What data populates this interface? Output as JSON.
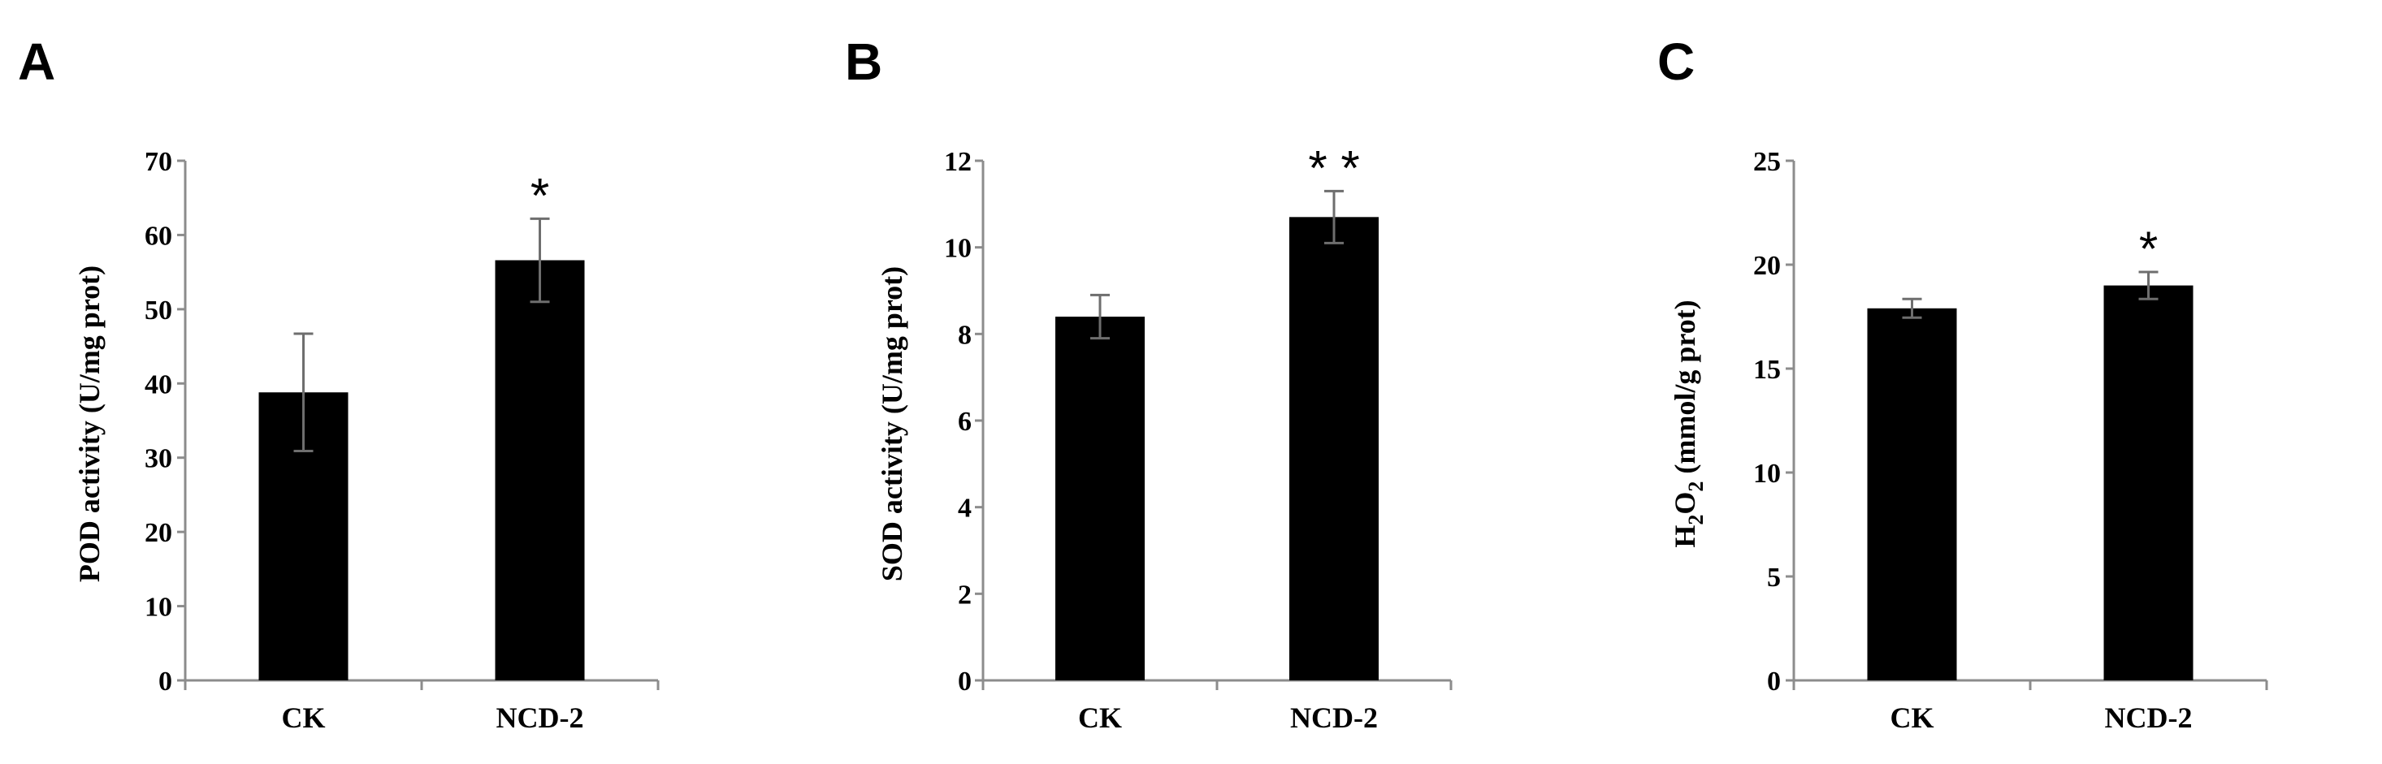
{
  "chart_data": [
    {
      "type": "bar",
      "panel_label": "A",
      "ylabel": "POD activity (U/mg prot)",
      "ylim": [
        0,
        70
      ],
      "yticks": [
        0,
        10,
        20,
        30,
        40,
        50,
        60,
        70
      ],
      "categories": [
        "CK",
        "NCD-2"
      ],
      "values": [
        38.8,
        56.6
      ],
      "errors": [
        7.9,
        5.6
      ],
      "significance": [
        "",
        "*"
      ],
      "bar_color": "#000000"
    },
    {
      "type": "bar",
      "panel_label": "B",
      "ylabel": "SOD activity (U/mg prot)",
      "ylim": [
        0,
        12
      ],
      "yticks": [
        0,
        2,
        4,
        6,
        8,
        10,
        12
      ],
      "categories": [
        "CK",
        "NCD-2"
      ],
      "values": [
        8.4,
        10.7
      ],
      "errors": [
        0.5,
        0.6
      ],
      "significance": [
        "",
        "* *"
      ],
      "bar_color": "#000000"
    },
    {
      "type": "bar",
      "panel_label": "C",
      "ylabel_parts": {
        "main": "H",
        "sub1": "2",
        "mid": "O",
        "sub2": "2",
        "rest": " (mmol/g prot)"
      },
      "ylim": [
        0,
        25
      ],
      "yticks": [
        0,
        5,
        10,
        15,
        20,
        25
      ],
      "categories": [
        "CK",
        "NCD-2"
      ],
      "values": [
        17.9,
        19.0
      ],
      "errors": [
        0.45,
        0.65
      ],
      "significance": [
        "",
        "*"
      ],
      "bar_color": "#000000"
    }
  ]
}
